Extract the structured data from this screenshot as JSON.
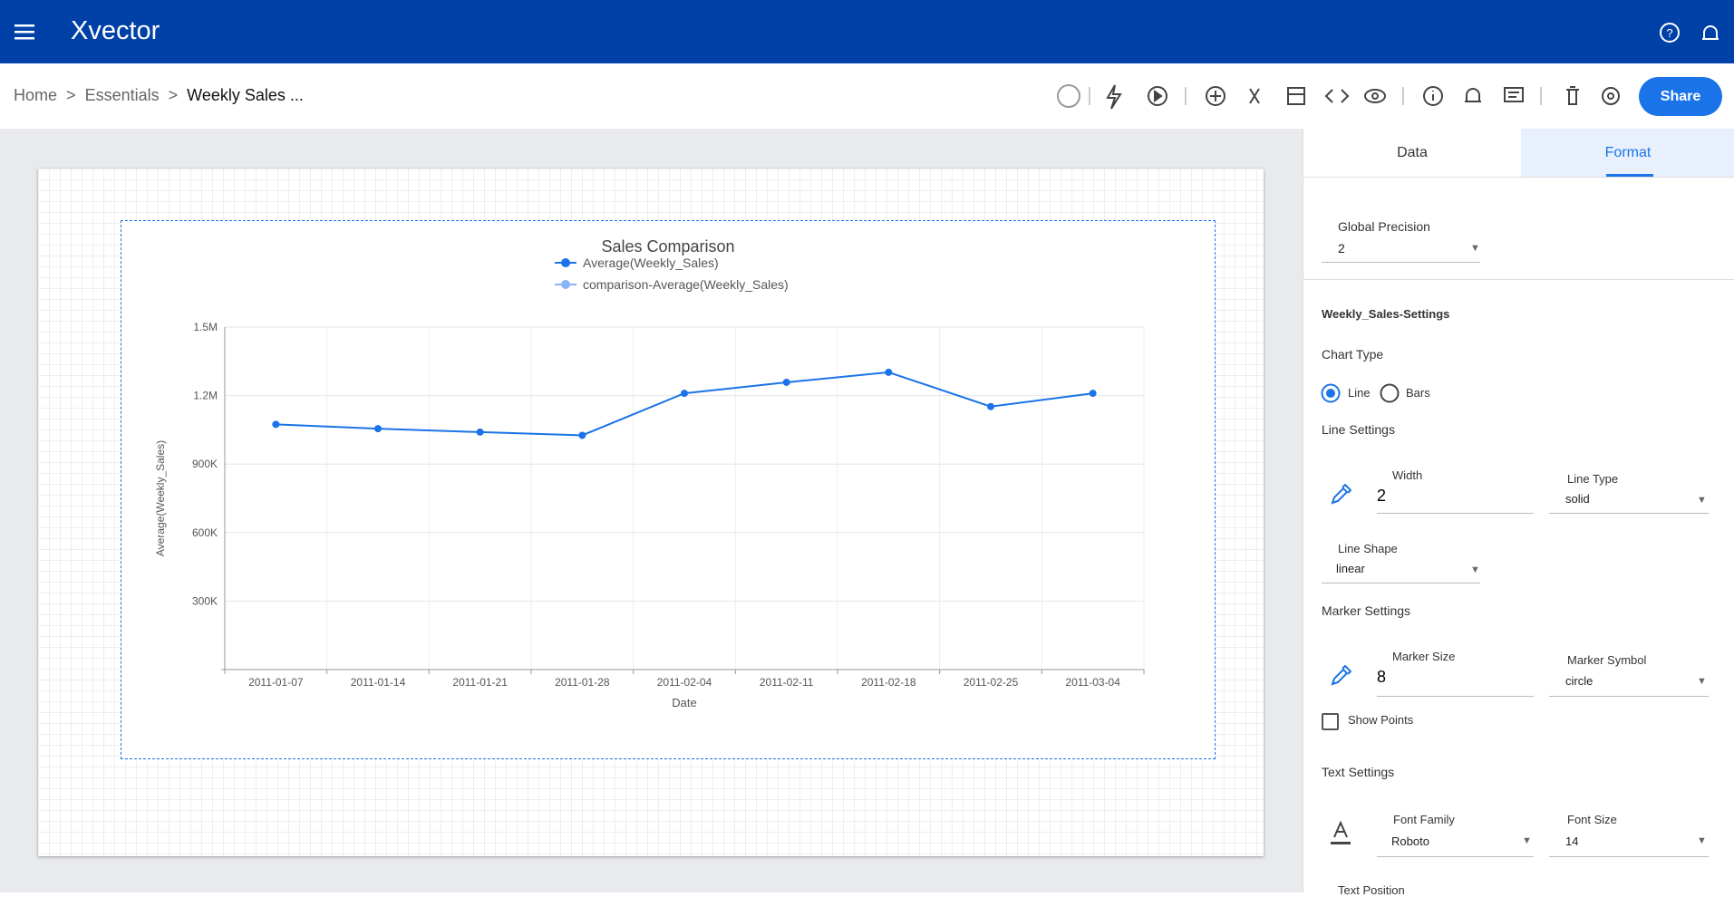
{
  "header": {
    "brand": "Xvector"
  },
  "breadcrumb": [
    "Home",
    ">",
    "Essentials",
    ">",
    "Weekly Sales ..."
  ],
  "toolbar": {
    "share": "Share"
  },
  "panel": {
    "tabs": [
      "Data",
      "Format"
    ],
    "global_precision": {
      "label": "Global Precision",
      "value": "2"
    },
    "section_title": "Weekly_Sales-Settings",
    "chart_type": {
      "label": "Chart Type",
      "options": [
        "Line",
        "Bars"
      ]
    },
    "line_settings": {
      "label": "Line Settings",
      "width_label": "Width",
      "width": "2",
      "type_label": "Line Type",
      "type": "solid",
      "shape_label": "Line Shape",
      "shape": "linear"
    },
    "marker_settings": {
      "label": "Marker Settings",
      "size_label": "Marker Size",
      "size": "8",
      "symbol_label": "Marker Symbol",
      "symbol": "circle",
      "show_points": "Show Points"
    },
    "text_settings": {
      "label": "Text Settings",
      "family_label": "Font Family",
      "family": "Roboto",
      "size_label": "Font Size",
      "size": "14",
      "position_label": "Text Position"
    }
  },
  "chart_data": {
    "type": "line",
    "title": "Sales Comparison",
    "x_label": "Date",
    "y_label": "Average(Weekly_Sales)",
    "categories": [
      "2011-01-07",
      "2011-01-14",
      "2011-01-21",
      "2011-01-28",
      "2011-02-04",
      "2011-02-11",
      "2011-02-18",
      "2011-02-25",
      "2011-03-04"
    ],
    "series": [
      {
        "name": "Average(Weekly_Sales)",
        "color": "#1a73e8",
        "values": [
          1074000,
          1055000,
          1040000,
          1026000,
          1210000,
          1258000,
          1302000,
          1152000,
          1210000
        ]
      },
      {
        "name": "comparison-Average(Weekly_Sales)",
        "color": "#8ab4f8",
        "values": [
          null,
          null,
          null,
          null,
          null,
          null,
          null,
          null,
          null
        ]
      }
    ],
    "ylim": [
      0,
      1500000
    ],
    "yticks": [
      {
        "value": 300000,
        "label": "300K"
      },
      {
        "value": 600000,
        "label": "600K"
      },
      {
        "value": 900000,
        "label": "900K"
      },
      {
        "value": 1200000,
        "label": "1.2M"
      },
      {
        "value": 1500000,
        "label": "1.5M"
      }
    ],
    "grid": true
  }
}
